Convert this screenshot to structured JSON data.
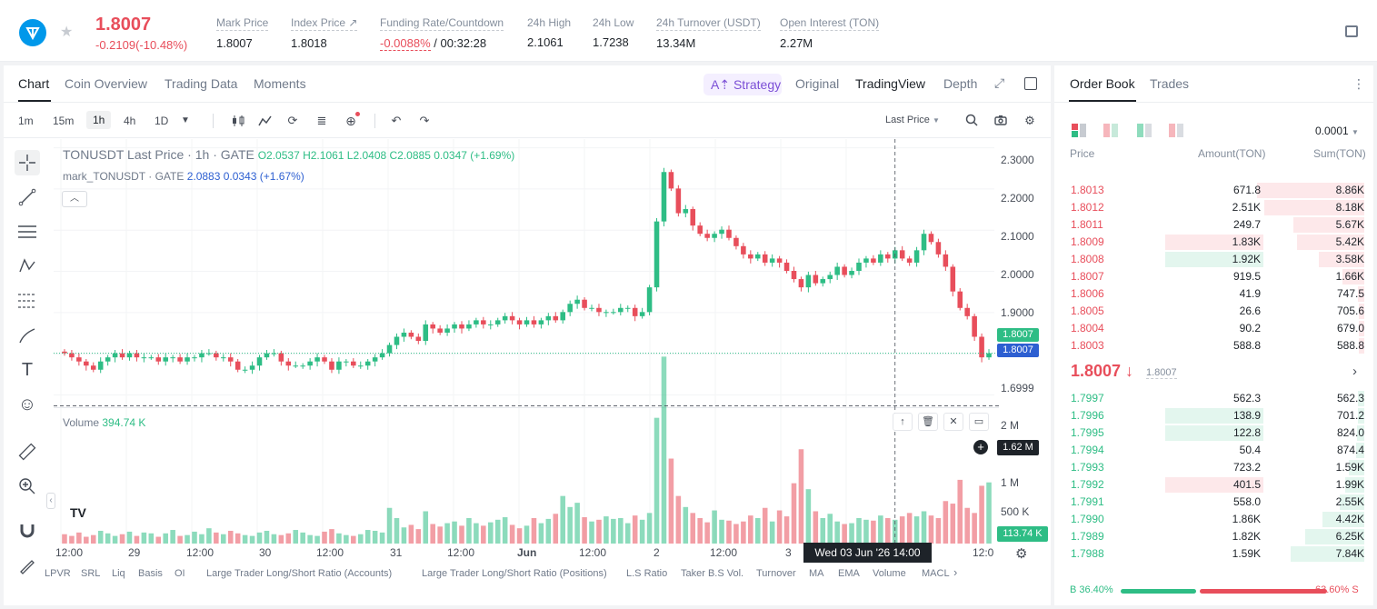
{
  "ticker": {
    "last_price": "1.8007",
    "change": "-0.2109(-10.48%)",
    "stats": [
      {
        "label": "Mark Price",
        "value": "1.8007"
      },
      {
        "label": "Index Price ↗",
        "value": "1.8018"
      },
      {
        "label": "Funding Rate/Countdown",
        "value": "-0.0088%",
        "value2": "/ 00:32:28"
      },
      {
        "label": "24h High",
        "value": "2.1061"
      },
      {
        "label": "24h Low",
        "value": "1.7238"
      },
      {
        "label": "24h Turnover (USDT)",
        "value": "13.34M"
      },
      {
        "label": "Open Interest (TON)",
        "value": "2.27M"
      }
    ]
  },
  "chart_tabs": [
    "Chart",
    "Coin Overview",
    "Trading Data",
    "Moments"
  ],
  "view_tabs": {
    "strategy": "Strategy",
    "original": "Original",
    "tradingview": "TradingView",
    "depth": "Depth"
  },
  "timeframes": [
    "1m",
    "15m",
    "1h",
    "4h",
    "1D"
  ],
  "active_timeframe": "1h",
  "price_type": "Last Price",
  "legend": {
    "title": "TONUSDT Last Price · 1h · GATE",
    "ohlc": "O2.0537  H2.1061  L2.0408  C2.0885  0.0347 (+1.69%)",
    "mark_name": "mark_TONUSDT · GATE",
    "mark_vals": "2.0883  0.0343 (+1.67%)",
    "volume_label": "Volume",
    "volume_value": "394.74 K"
  },
  "price_axis": [
    "2.3000",
    "2.2000",
    "2.1000",
    "2.0000",
    "1.9000",
    "1.8000",
    "1.6999"
  ],
  "volume_axis": [
    "2 M",
    "1 M",
    "500 K"
  ],
  "tags": {
    "mark": "1.8007",
    "last": "1.8007",
    "cross_vol": "1.62 M",
    "last_vol": "113.74 K"
  },
  "x_axis": [
    "12:00",
    "29",
    "12:00",
    "30",
    "12:00",
    "31",
    "12:00",
    "Jun",
    "12:00",
    "2",
    "12:00",
    "3",
    "12:0"
  ],
  "crosshair_date": "Wed 03 Jun '26   14:00",
  "indicators": [
    "LPVR",
    "SRL",
    "Liq",
    "Basis",
    "OI",
    "Large Trader Long/Short Ratio (Accounts)",
    "Large Trader Long/Short Ratio (Positions)",
    "L.S Ratio",
    "Taker B.S Vol.",
    "Turnover",
    "MA",
    "EMA",
    "Volume",
    "MACL"
  ],
  "chart_data": {
    "type": "candlestick",
    "title": "TONUSDT Last Price · 1h · GATE",
    "ylim": [
      1.68,
      2.32
    ],
    "y_ticks": [
      2.3,
      2.2,
      2.1,
      2.0,
      1.9,
      1.8,
      1.6999
    ],
    "closes": [
      1.8,
      1.79,
      1.78,
      1.77,
      1.76,
      1.78,
      1.79,
      1.8,
      1.79,
      1.8,
      1.79,
      1.79,
      1.79,
      1.78,
      1.79,
      1.79,
      1.78,
      1.79,
      1.79,
      1.8,
      1.8,
      1.79,
      1.79,
      1.78,
      1.76,
      1.76,
      1.77,
      1.79,
      1.8,
      1.8,
      1.78,
      1.77,
      1.77,
      1.77,
      1.78,
      1.79,
      1.78,
      1.76,
      1.78,
      1.78,
      1.77,
      1.77,
      1.78,
      1.79,
      1.8,
      1.82,
      1.84,
      1.85,
      1.84,
      1.83,
      1.87,
      1.86,
      1.85,
      1.86,
      1.87,
      1.86,
      1.87,
      1.88,
      1.87,
      1.87,
      1.88,
      1.89,
      1.88,
      1.87,
      1.88,
      1.87,
      1.88,
      1.89,
      1.88,
      1.9,
      1.92,
      1.93,
      1.91,
      1.91,
      1.9,
      1.9,
      1.9,
      1.91,
      1.91,
      1.89,
      1.9,
      1.96,
      2.12,
      2.24,
      2.2,
      2.14,
      2.15,
      2.11,
      2.09,
      2.08,
      2.09,
      2.1,
      2.08,
      2.06,
      2.04,
      2.03,
      2.04,
      2.02,
      2.03,
      2.02,
      2.0,
      1.98,
      1.96,
      1.99,
      1.97,
      1.98,
      1.99,
      2.01,
      1.99,
      2.0,
      2.02,
      2.03,
      2.02,
      2.04,
      2.03,
      2.05,
      2.03,
      2.02,
      2.05,
      2.09,
      2.07,
      2.04,
      2.01,
      1.95,
      1.91,
      1.89,
      1.84,
      1.79,
      1.8
    ],
    "volume_ylim": [
      0,
      2300000
    ],
    "volume_ticks": [
      2000000,
      1000000,
      500000
    ],
    "volume": [
      110000,
      90000,
      130000,
      80000,
      100000,
      150000,
      120000,
      90000,
      110000,
      140000,
      90000,
      130000,
      120000,
      80000,
      120000,
      160000,
      90000,
      100000,
      140000,
      110000,
      180000,
      130000,
      110000,
      150000,
      120000,
      100000,
      90000,
      130000,
      150000,
      110000,
      100000,
      120000,
      160000,
      130000,
      100000,
      90000,
      140000,
      170000,
      120000,
      100000,
      90000,
      110000,
      160000,
      150000,
      130000,
      420000,
      300000,
      190000,
      220000,
      170000,
      380000,
      230000,
      200000,
      240000,
      260000,
      210000,
      300000,
      240000,
      210000,
      250000,
      280000,
      310000,
      220000,
      180000,
      210000,
      300000,
      240000,
      290000,
      350000,
      560000,
      430000,
      480000,
      310000,
      260000,
      280000,
      320000,
      290000,
      300000,
      240000,
      330000,
      280000,
      360000,
      1480000,
      2200000,
      1000000,
      560000,
      430000,
      360000,
      300000,
      250000,
      390000,
      280000,
      270000,
      230000,
      260000,
      330000,
      300000,
      420000,
      260000,
      390000,
      320000,
      710000,
      1110000,
      640000,
      380000,
      300000,
      350000,
      260000,
      230000,
      240000,
      300000,
      280000,
      270000,
      330000,
      300000,
      280000,
      320000,
      360000,
      320000,
      380000,
      330000,
      300000,
      500000,
      470000,
      750000,
      420000,
      360000,
      680000,
      720000,
      400000
    ]
  },
  "orderbook": {
    "tabs": [
      "Order Book",
      "Trades"
    ],
    "precision": "0.0001",
    "headers": {
      "price": "Price",
      "amount": "Amount(TON)",
      "sum": "Sum(TON)"
    },
    "asks": [
      {
        "price": "1.8013",
        "amount": "671.8",
        "sum": "8.86K",
        "w": 1.0,
        "aw": 0
      },
      {
        "price": "1.8012",
        "amount": "2.51K",
        "sum": "8.18K",
        "w": 0.93,
        "aw": 0
      },
      {
        "price": "1.8011",
        "amount": "249.7",
        "sum": "5.67K",
        "w": 0.66,
        "aw": 0
      },
      {
        "price": "1.8009",
        "amount": "1.83K",
        "sum": "5.42K",
        "w": 0.63,
        "aw": 0.58
      },
      {
        "price": "1.8008",
        "amount": "1.92K",
        "sum": "3.58K",
        "w": 0.42,
        "aw": 0.58
      },
      {
        "price": "1.8007",
        "amount": "919.5",
        "sum": "1.66K",
        "w": 0.2,
        "aw": 0
      },
      {
        "price": "1.8006",
        "amount": "41.9",
        "sum": "747.5",
        "w": 0.06,
        "aw": 0
      },
      {
        "price": "1.8005",
        "amount": "26.6",
        "sum": "705.6",
        "w": 0.05,
        "aw": 0
      },
      {
        "price": "1.8004",
        "amount": "90.2",
        "sum": "679.0",
        "w": 0.05,
        "aw": 0
      },
      {
        "price": "1.8003",
        "amount": "588.8",
        "sum": "588.8",
        "w": 0.05,
        "aw": 0
      }
    ],
    "mid_price": "1.8007 ↓",
    "mid_mark": "1.8007",
    "bids": [
      {
        "price": "1.7997",
        "amount": "562.3",
        "sum": "562.3",
        "w": 0.06,
        "aw": 0
      },
      {
        "price": "1.7996",
        "amount": "138.9",
        "sum": "701.2",
        "w": 0.06,
        "aw": 0.58
      },
      {
        "price": "1.7995",
        "amount": "122.8",
        "sum": "824.0",
        "w": 0.07,
        "aw": 0.58
      },
      {
        "price": "1.7994",
        "amount": "50.4",
        "sum": "874.4",
        "w": 0.08,
        "aw": 0
      },
      {
        "price": "1.7993",
        "amount": "723.2",
        "sum": "1.59K",
        "w": 0.14,
        "aw": 0
      },
      {
        "price": "1.7992",
        "amount": "401.5",
        "sum": "1.99K",
        "w": 0.18,
        "aw": 0.58
      },
      {
        "price": "1.7991",
        "amount": "558.0",
        "sum": "2.55K",
        "w": 0.23,
        "aw": 0
      },
      {
        "price": "1.7990",
        "amount": "1.86K",
        "sum": "4.42K",
        "w": 0.39,
        "aw": 0
      },
      {
        "price": "1.7989",
        "amount": "1.82K",
        "sum": "6.25K",
        "w": 0.55,
        "aw": 0
      },
      {
        "price": "1.7988",
        "amount": "1.59K",
        "sum": "7.84K",
        "w": 0.69,
        "aw": 0
      }
    ],
    "buy_ratio": "B 36.40%",
    "sell_ratio": "63.60% S",
    "buy_fraction": 0.364
  },
  "colors": {
    "up": "#2ebd85",
    "down": "#e84e5b",
    "mark": "#2d5fd1",
    "accent": "#7b4fd6"
  }
}
